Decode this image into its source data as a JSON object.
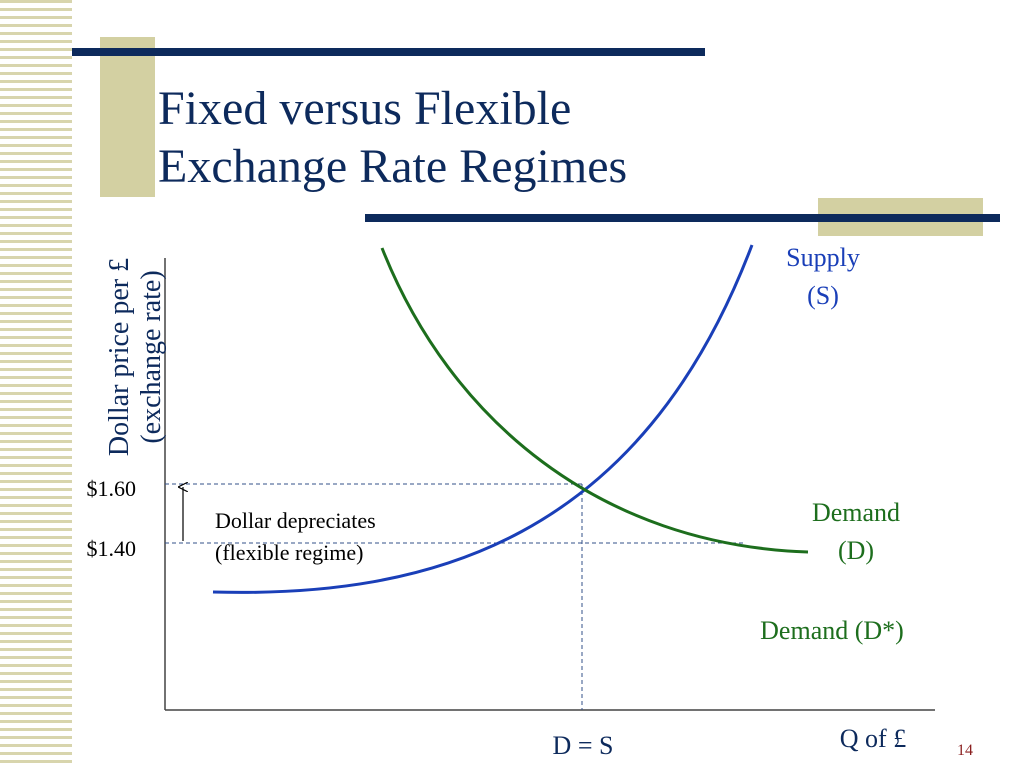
{
  "title": {
    "line1": "Fixed versus Flexible",
    "line2": "Exchange Rate Regimes"
  },
  "diagram": {
    "y_axis_label": {
      "line1": "Dollar price per £",
      "line2": "(exchange rate)"
    },
    "x_axis_label": "Q of £",
    "price_labels": [
      "$1.60",
      "$1.40"
    ],
    "equilibrium_label": "D = S",
    "supply_label": {
      "line1": "Supply",
      "line2": "(S)"
    },
    "demand_label": {
      "line1": "Demand",
      "line2": "(D)"
    },
    "demand_star_label": "Demand (D*)",
    "annotation": {
      "line1": "Dollar depreciates",
      "line2": "(flexible regime)"
    }
  },
  "slide_number": "14"
}
